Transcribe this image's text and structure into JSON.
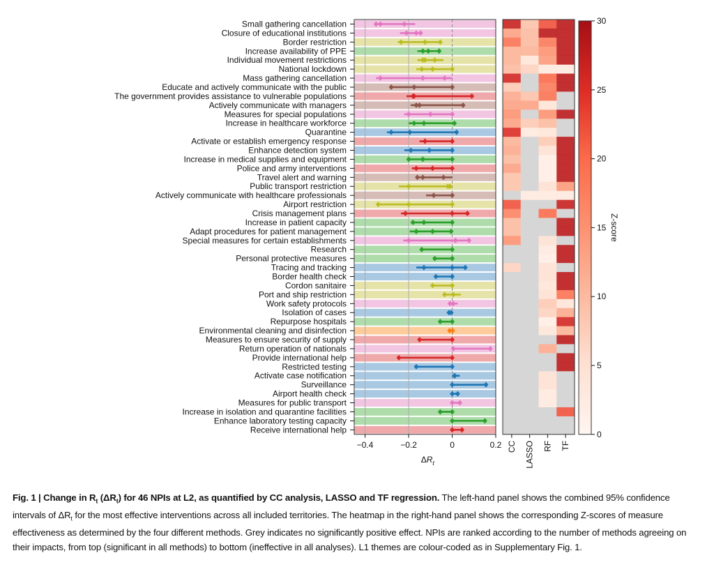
{
  "chart_data": [
    {
      "type": "forest",
      "xlabel": "ΔR_t",
      "xlim": [
        -0.45,
        0.2
      ],
      "xticks": [
        -0.4,
        -0.2,
        0,
        0.2
      ],
      "xtick_labels": [
        "−0.4",
        "−0.2",
        "0",
        "0.2"
      ],
      "grid": "vertical at -0.4, -0.2; dashed line at 0",
      "theme_colors": {
        "pink": {
          "band": "#f2c6e2",
          "line": "#e377c2"
        },
        "olive": {
          "band": "#e5e3a8",
          "line": "#bcbd22"
        },
        "green": {
          "band": "#aedcaa",
          "line": "#2ca02c"
        },
        "brown": {
          "band": "#d5bcb6",
          "line": "#8c564b"
        },
        "red": {
          "band": "#f0a9ab",
          "line": "#d62728"
        },
        "blue": {
          "band": "#a9c9e3",
          "line": "#1f77b4"
        },
        "orange": {
          "band": "#fecb9b",
          "line": "#ff7f0e"
        }
      },
      "rows": [
        {
          "label": "Small gathering cancellation",
          "theme": "pink",
          "lo": -0.35,
          "hi": -0.17,
          "points": [
            -0.35,
            -0.33,
            -0.22
          ]
        },
        {
          "label": "Closure of educational institutions",
          "theme": "pink",
          "lo": -0.24,
          "hi": -0.14,
          "points": [
            -0.21,
            -0.165,
            -0.145
          ]
        },
        {
          "label": "Border restriction",
          "theme": "olive",
          "lo": -0.25,
          "hi": -0.05,
          "points": [
            -0.235,
            -0.125,
            -0.055
          ]
        },
        {
          "label": "Increase availability of PPE",
          "theme": "green",
          "lo": -0.16,
          "hi": -0.06,
          "points": [
            -0.135,
            -0.11,
            -0.06
          ]
        },
        {
          "label": "Individual movement restrictions",
          "theme": "olive",
          "lo": -0.16,
          "hi": -0.04,
          "points": [
            -0.135,
            -0.125,
            -0.08
          ]
        },
        {
          "label": "National lockdown",
          "theme": "olive",
          "lo": -0.165,
          "hi": 0.0,
          "points": [
            -0.14,
            -0.09,
            0.0
          ]
        },
        {
          "label": "Mass gathering cancellation",
          "theme": "pink",
          "lo": -0.35,
          "hi": 0.0,
          "points": [
            -0.33,
            -0.135,
            -0.035
          ]
        },
        {
          "label": "Educate and actively communicate with the public",
          "theme": "brown",
          "lo": -0.28,
          "hi": 0.0,
          "points": [
            -0.28,
            -0.175,
            0.0
          ]
        },
        {
          "label": "The government provides assistance to vulnerable populations",
          "theme": "red",
          "lo": -0.21,
          "hi": 0.09,
          "points": [
            -0.18,
            -0.175,
            0.09
          ]
        },
        {
          "label": "Actively communicate with managers",
          "theme": "brown",
          "lo": -0.19,
          "hi": 0.05,
          "points": [
            -0.165,
            -0.15,
            0.05
          ]
        },
        {
          "label": "Measures for special populations",
          "theme": "pink",
          "lo": -0.22,
          "hi": 0.0,
          "points": [
            -0.2,
            -0.1,
            0.0
          ]
        },
        {
          "label": "Increase in healthcare workforce",
          "theme": "green",
          "lo": -0.2,
          "hi": 0.01,
          "points": [
            -0.175,
            -0.13,
            0.01
          ]
        },
        {
          "label": "Quarantine",
          "theme": "blue",
          "lo": -0.3,
          "hi": 0.02,
          "points": [
            -0.28,
            -0.195,
            0.02
          ]
        },
        {
          "label": "Activate or establish emergency response",
          "theme": "red",
          "lo": -0.15,
          "hi": 0.0,
          "points": [
            -0.125,
            -0.125,
            0.0
          ]
        },
        {
          "label": "Enhance detection system",
          "theme": "blue",
          "lo": -0.22,
          "hi": 0.0,
          "points": [
            -0.19,
            -0.105,
            0.0
          ]
        },
        {
          "label": "Increase in medical supplies and equipment",
          "theme": "green",
          "lo": -0.2,
          "hi": 0.0,
          "points": [
            -0.2,
            -0.135,
            0.0
          ]
        },
        {
          "label": "Police and army interventions",
          "theme": "red",
          "lo": -0.185,
          "hi": 0.0,
          "points": [
            -0.165,
            -0.09,
            0.0
          ]
        },
        {
          "label": "Travel alert and warning",
          "theme": "brown",
          "lo": -0.165,
          "hi": 0.0,
          "points": [
            -0.16,
            -0.135,
            -0.04
          ]
        },
        {
          "label": "Public transport restriction",
          "theme": "olive",
          "lo": -0.245,
          "hi": 0.0,
          "points": [
            -0.2,
            -0.02,
            -0.01
          ]
        },
        {
          "label": "Actively communicate with healthcare professionals",
          "theme": "brown",
          "lo": -0.12,
          "hi": 0.0,
          "points": [
            -0.085,
            0.0
          ]
        },
        {
          "label": "Airport restriction",
          "theme": "olive",
          "lo": -0.34,
          "hi": 0.0,
          "points": [
            -0.34,
            -0.2,
            0.0
          ]
        },
        {
          "label": "Crisis management plans",
          "theme": "red",
          "lo": -0.235,
          "hi": 0.07,
          "points": [
            -0.215,
            0.0,
            0.07
          ]
        },
        {
          "label": "Increase in patient capacity",
          "theme": "green",
          "lo": -0.19,
          "hi": 0.0,
          "points": [
            -0.18,
            -0.13,
            0.0
          ]
        },
        {
          "label": "Adapt procedures for patient management",
          "theme": "green",
          "lo": -0.195,
          "hi": 0.0,
          "points": [
            -0.165,
            -0.09,
            -0.005
          ]
        },
        {
          "label": "Special measures for certain establishments",
          "theme": "pink",
          "lo": -0.225,
          "hi": 0.08,
          "points": [
            -0.2,
            0.015,
            0.077
          ]
        },
        {
          "label": "Research",
          "theme": "green",
          "lo": -0.14,
          "hi": 0.0,
          "points": [
            -0.14,
            0.0
          ]
        },
        {
          "label": "Personal protective measures",
          "theme": "green",
          "lo": -0.085,
          "hi": 0.0,
          "points": [
            -0.08,
            0.0
          ]
        },
        {
          "label": "Tracing and tracking",
          "theme": "blue",
          "lo": -0.165,
          "hi": 0.06,
          "points": [
            -0.13,
            0.0,
            0.06
          ]
        },
        {
          "label": "Border health check",
          "theme": "blue",
          "lo": -0.08,
          "hi": 0.0,
          "points": [
            -0.075,
            0.0
          ]
        },
        {
          "label": "Cordon sanitaire",
          "theme": "olive",
          "lo": -0.09,
          "hi": 0.0,
          "points": [
            -0.09,
            0.0
          ]
        },
        {
          "label": "Port and ship restriction",
          "theme": "olive",
          "lo": -0.035,
          "hi": 0.04,
          "points": [
            -0.035,
            0.005
          ]
        },
        {
          "label": "Work safety protocols",
          "theme": "pink",
          "lo": -0.015,
          "hi": 0.025,
          "points": [
            -0.01,
            0.005
          ]
        },
        {
          "label": "Isolation of cases",
          "theme": "blue",
          "lo": -0.02,
          "hi": 0.005,
          "points": [
            -0.015,
            -0.005
          ]
        },
        {
          "label": "Repurpose hospitals",
          "theme": "green",
          "lo": -0.055,
          "hi": 0.0,
          "points": [
            -0.055,
            0.0
          ]
        },
        {
          "label": "Environmental cleaning and disinfection",
          "theme": "orange",
          "lo": -0.015,
          "hi": 0.005,
          "points": [
            -0.012,
            0.002
          ]
        },
        {
          "label": "Measures to ensure security of supply",
          "theme": "red",
          "lo": -0.15,
          "hi": 0.0,
          "points": [
            -0.15,
            0.0
          ]
        },
        {
          "label": "Return operation of nationals",
          "theme": "pink",
          "lo": 0.0,
          "hi": 0.175,
          "points": [
            0.005,
            0.175
          ]
        },
        {
          "label": "Provide international help",
          "theme": "red",
          "lo": -0.245,
          "hi": 0.0,
          "points": [
            -0.245,
            0.0
          ]
        },
        {
          "label": "Restricted testing",
          "theme": "blue",
          "lo": -0.165,
          "hi": 0.0,
          "points": [
            -0.165,
            0.0
          ]
        },
        {
          "label": "Activate case notification",
          "theme": "blue",
          "lo": 0.0,
          "hi": 0.035,
          "points": [
            0.01,
            0.012
          ]
        },
        {
          "label": "Surveillance",
          "theme": "blue",
          "lo": 0.0,
          "hi": 0.155,
          "points": [
            0.0,
            0.155
          ]
        },
        {
          "label": "Airport health check",
          "theme": "blue",
          "lo": 0.0,
          "hi": 0.025,
          "points": [
            0.0,
            0.025
          ]
        },
        {
          "label": "Measures for public transport",
          "theme": "pink",
          "lo": 0.0,
          "hi": 0.035,
          "points": [
            0.0,
            0.035
          ]
        },
        {
          "label": "Increase in isolation and quarantine facilities",
          "theme": "green",
          "lo": -0.055,
          "hi": 0.0,
          "points": [
            -0.055,
            0.0
          ]
        },
        {
          "label": "Enhance laboratory testing capacity",
          "theme": "green",
          "lo": 0.0,
          "hi": 0.15,
          "points": [
            0.0,
            0.15
          ]
        },
        {
          "label": "Receive international help",
          "theme": "red",
          "lo": 0.0,
          "hi": 0.045,
          "points": [
            0.0,
            0.045
          ]
        }
      ]
    },
    {
      "type": "heatmap",
      "columns": [
        "CC",
        "LASSO",
        "RF",
        "TF"
      ],
      "colorbar": {
        "label": "Z-score",
        "range": [
          0,
          30
        ],
        "ticks": [
          0,
          5,
          10,
          15,
          20,
          25,
          30
        ]
      },
      "grey_meaning": "no significantly positive effect (null)",
      "values": [
        [
          27,
          9,
          22,
          28
        ],
        [
          13,
          10,
          28,
          28
        ],
        [
          19,
          10,
          18,
          28
        ],
        [
          11,
          11,
          15,
          28
        ],
        [
          11,
          4,
          14,
          28
        ],
        [
          10,
          7,
          3,
          3
        ],
        [
          26,
          null,
          20,
          28
        ],
        [
          8,
          null,
          18,
          28
        ],
        [
          12,
          9,
          19,
          null
        ],
        [
          13,
          13,
          4,
          null
        ],
        [
          15,
          null,
          15,
          28
        ],
        [
          13,
          8,
          10,
          null
        ],
        [
          25,
          3,
          4,
          null
        ],
        [
          11,
          null,
          8,
          28
        ],
        [
          12,
          null,
          5,
          28
        ],
        [
          10,
          null,
          2,
          28
        ],
        [
          13,
          null,
          2,
          28
        ],
        [
          9,
          null,
          2,
          28
        ],
        [
          9,
          null,
          5,
          14
        ],
        [
          null,
          3,
          3,
          3
        ],
        [
          22,
          null,
          null,
          27
        ],
        [
          17,
          null,
          20,
          null
        ],
        [
          10,
          null,
          null,
          28
        ],
        [
          10,
          null,
          null,
          28
        ],
        [
          15,
          null,
          5,
          null
        ],
        [
          null,
          null,
          3,
          28
        ],
        [
          null,
          null,
          2,
          28
        ],
        [
          7,
          null,
          5,
          null
        ],
        [
          null,
          null,
          5,
          28
        ],
        [
          null,
          null,
          4,
          28
        ],
        [
          null,
          null,
          5,
          19
        ],
        [
          null,
          null,
          8,
          4
        ],
        [
          null,
          null,
          7,
          12
        ],
        [
          null,
          null,
          2,
          26
        ],
        [
          null,
          null,
          4,
          11
        ],
        [
          null,
          null,
          null,
          28
        ],
        [
          null,
          null,
          12,
          null
        ],
        [
          null,
          null,
          null,
          28
        ],
        [
          null,
          null,
          null,
          28
        ],
        [
          null,
          null,
          5,
          null
        ],
        [
          null,
          null,
          5,
          null
        ],
        [
          null,
          null,
          3,
          null
        ],
        [
          null,
          null,
          3,
          null
        ],
        [
          null,
          null,
          null,
          22
        ],
        [
          null,
          null,
          null,
          null
        ],
        [
          null,
          null,
          null,
          null
        ]
      ]
    }
  ],
  "caption": {
    "bold": "Fig. 1 | Change in R",
    "bold_sub": "t",
    "bold_mid": " (ΔR",
    "bold_sub2": "t",
    "bold_end": ") for 46 NPIs at L2, as quantified by CC analysis, LASSO and TF regression.",
    "text1": " The left-hand panel shows the combined 95% confidence intervals of ΔR",
    "text_sub": "t",
    "text2": " for the most effective interventions across all included territories. The heatmap in the right-hand panel shows the corresponding Z-scores of measure effectiveness as determined by the four different methods. Grey indicates no significantly positive effect. NPIs are ranked according to the number of methods agreeing on their impacts, from top (significant in all methods) to bottom (ineffective in all analyses). L1 themes are colour-coded as in Supplementary Fig. 1."
  }
}
